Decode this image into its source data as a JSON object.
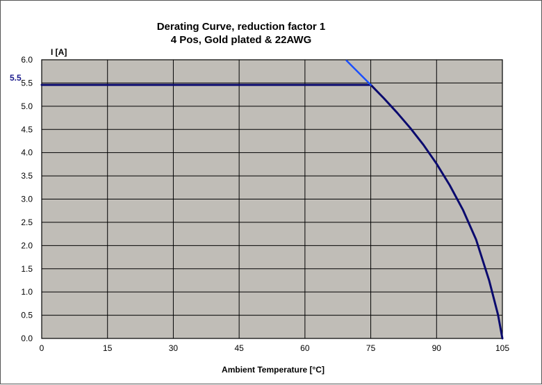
{
  "chart_data": {
    "type": "line",
    "title": "Derating Curve, reduction factor 1",
    "subtitle": "4 Pos, Gold plated & 22AWG",
    "xlabel": "Ambient  Temperature [°C]",
    "ylabel": "I [A]",
    "xlim": [
      0,
      105
    ],
    "ylim": [
      0,
      6
    ],
    "xticks": [
      0,
      15,
      30,
      45,
      60,
      75,
      90,
      105
    ],
    "xtick_labels": [
      "0",
      "15",
      "30",
      "45",
      "60",
      "75",
      "90",
      "105"
    ],
    "yticks": [
      0,
      0.5,
      1,
      1.5,
      2,
      2.5,
      3,
      3.5,
      4,
      4.5,
      5,
      5.5,
      6
    ],
    "ytick_labels": [
      "0.0",
      "0.5",
      "1.0",
      "1.5",
      "2.0",
      "2.5",
      "3.0",
      "3.5",
      "4.0",
      "4.5",
      "5.0",
      "5.5",
      "6.0"
    ],
    "grid": true,
    "background_color": "#c0bdb7",
    "annotation": {
      "text": "5.5",
      "y": 5.46,
      "color": "#1a1a8c"
    },
    "series": [
      {
        "color": "#0a0a6e",
        "x": [
          0,
          75,
          78,
          81,
          84,
          87,
          90,
          93,
          96,
          99,
          102,
          104,
          105
        ],
        "y": [
          5.46,
          5.46,
          5.17,
          4.86,
          4.53,
          4.17,
          3.76,
          3.3,
          2.77,
          2.13,
          1.24,
          0.51,
          0.0
        ]
      },
      {
        "color": "#1a4fff",
        "x": [
          69.5,
          75
        ],
        "y": [
          5.98,
          5.46
        ]
      }
    ]
  }
}
